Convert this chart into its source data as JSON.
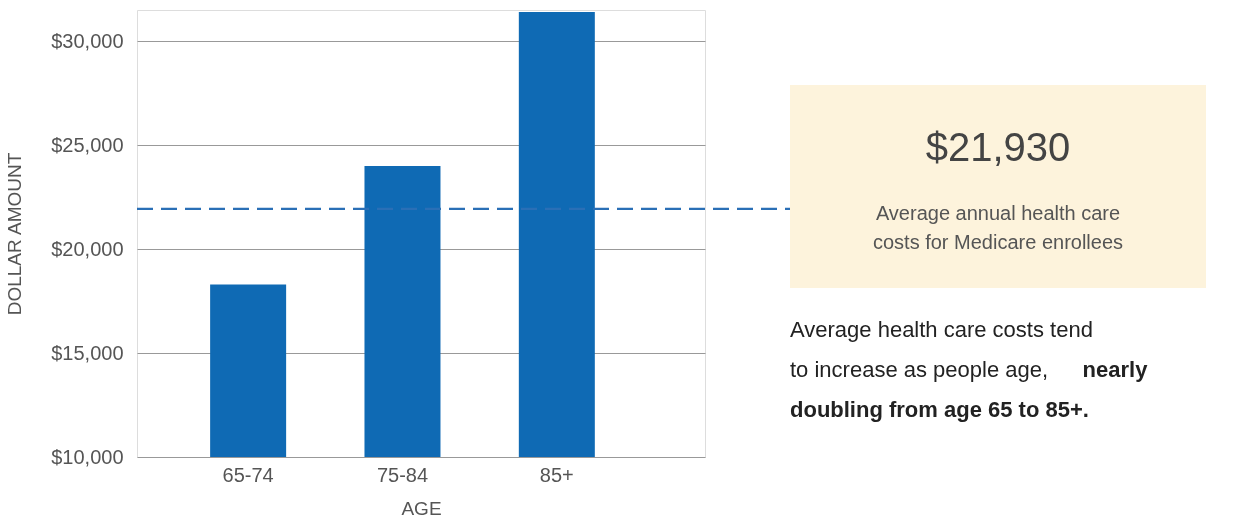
{
  "chart_data": {
    "type": "bar",
    "xlabel": "AGE",
    "ylabel": "DOLLAR AMOUNT",
    "categories": [
      "65-74",
      "75-84",
      "85+"
    ],
    "values": [
      18300,
      24000,
      31400
    ],
    "color": "#0f6ab4",
    "ylim": [
      10000,
      31500
    ],
    "yticks": [
      {
        "value": 10000,
        "label": "$10,000"
      },
      {
        "value": 15000,
        "label": "$15,000"
      },
      {
        "value": 20000,
        "label": "$20,000"
      },
      {
        "value": 25000,
        "label": "$25,000"
      },
      {
        "value": 30000,
        "label": "$30,000"
      }
    ],
    "grid": "y",
    "ref_lines": [
      {
        "axis": "y",
        "value": 21930,
        "color": "#2a6fb6",
        "line_style": "dashed"
      }
    ],
    "annotations": [
      "$21,930",
      "Average annual health care costs for Medicare enrollees",
      "Average health care costs tend to increase as people age,",
      "nearly doubling from age 65 to 85+."
    ]
  }
}
